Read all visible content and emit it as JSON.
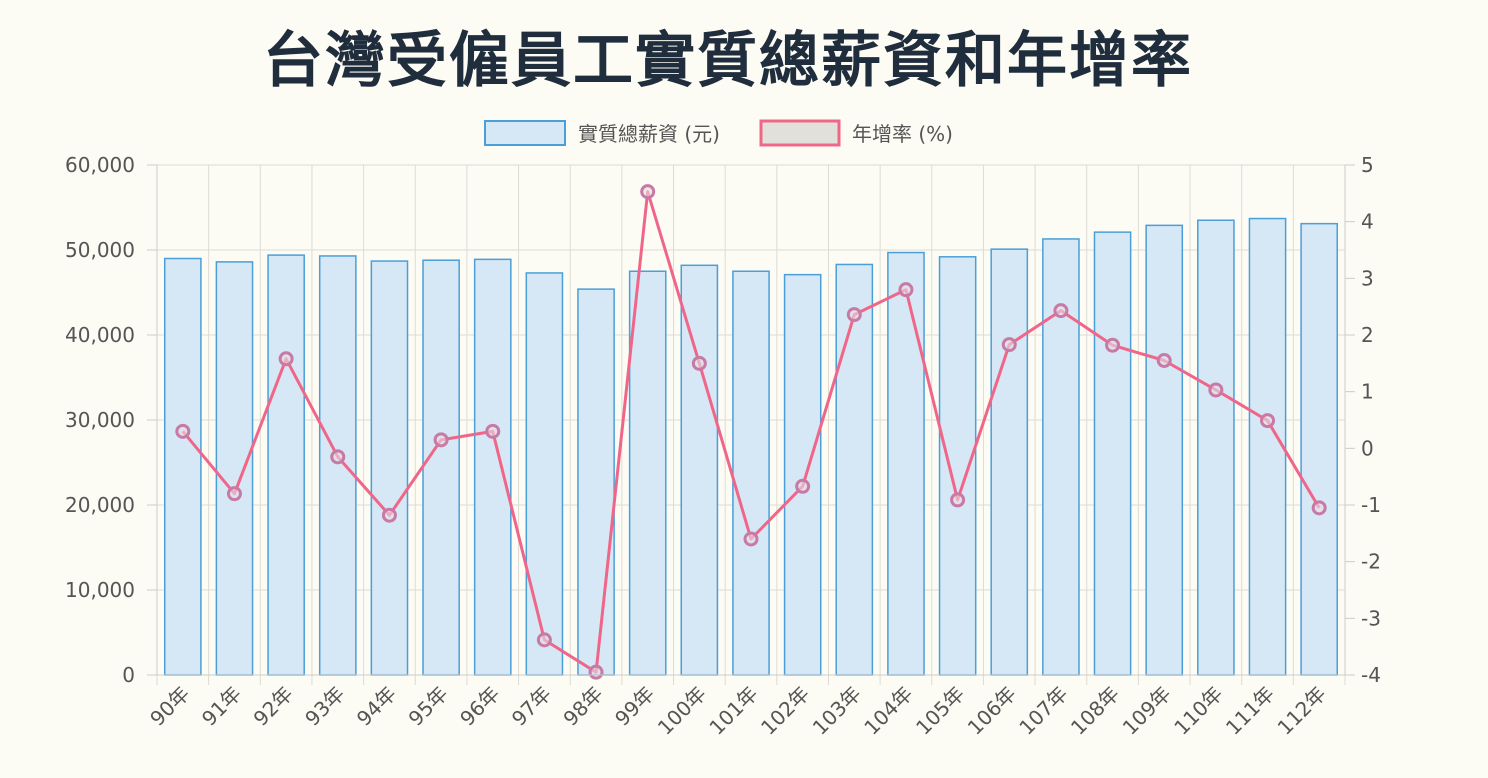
{
  "chart_data": {
    "type": "bar",
    "title": "台灣受僱員工實質總薪資和年增率",
    "categories": [
      "90年",
      "91年",
      "92年",
      "93年",
      "94年",
      "95年",
      "96年",
      "97年",
      "98年",
      "99年",
      "100年",
      "101年",
      "102年",
      "103年",
      "104年",
      "105年",
      "106年",
      "107年",
      "108年",
      "109年",
      "110年",
      "111年",
      "112年"
    ],
    "series": [
      {
        "name": "實質總薪資 (元)",
        "type": "bar",
        "axis": "left",
        "color": "#4a9fd8",
        "fill": "#d6e8f5",
        "values": [
          49000,
          48600,
          49400,
          49300,
          48700,
          48800,
          48900,
          47300,
          45400,
          47500,
          48200,
          47500,
          47100,
          48300,
          49700,
          49200,
          50100,
          51300,
          52100,
          52900,
          53500,
          53700,
          53100
        ]
      },
      {
        "name": "年增率 (%)",
        "type": "line",
        "axis": "right",
        "color": "#f06688",
        "marker_color": "#c77aa6",
        "values": [
          0.3,
          -0.8,
          1.58,
          -0.15,
          -1.18,
          0.15,
          0.3,
          -3.38,
          -3.95,
          4.53,
          1.5,
          -1.6,
          -0.67,
          2.36,
          2.8,
          -0.91,
          1.83,
          2.43,
          1.82,
          1.55,
          1.03,
          0.49,
          -1.05
        ]
      }
    ],
    "y_left": {
      "ylim": [
        0,
        60000
      ],
      "ticks": [
        "0",
        "10,000",
        "20,000",
        "30,000",
        "40,000",
        "50,000",
        "60,000"
      ]
    },
    "y_right": {
      "ylim": [
        -4,
        5
      ],
      "ticks": [
        "-4",
        "-3",
        "-2",
        "-1",
        "0",
        "1",
        "2",
        "3",
        "4",
        "5"
      ]
    },
    "grid": true,
    "legend_position": "top-center"
  }
}
